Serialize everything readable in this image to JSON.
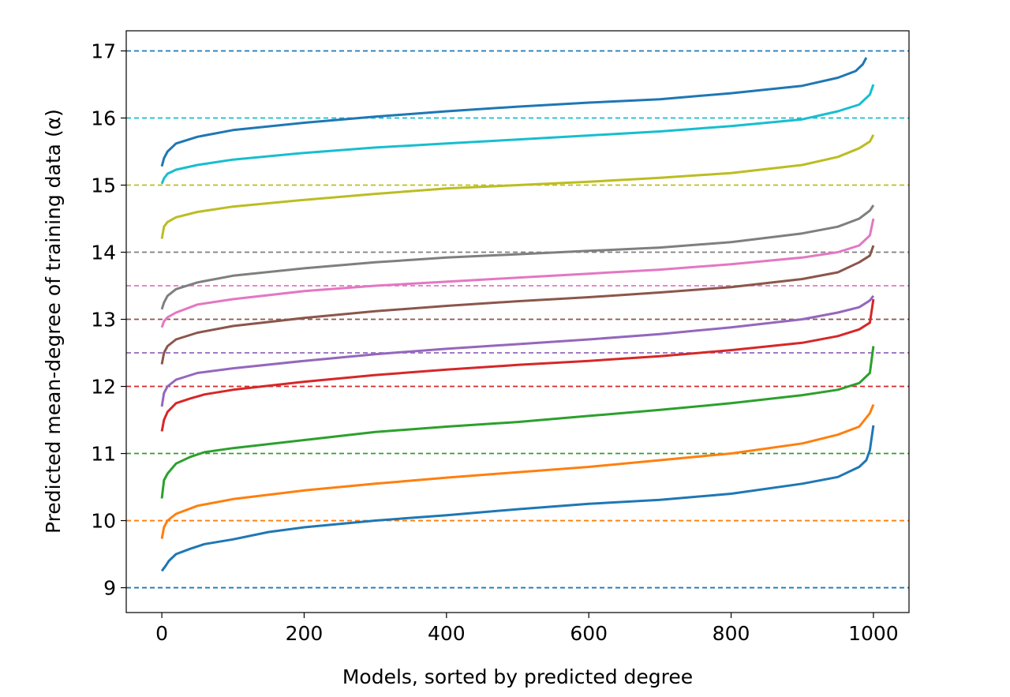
{
  "chart_data": {
    "type": "line",
    "title": "",
    "xlabel": "Models, sorted by predicted degree",
    "ylabel": "Predicted mean-degree of training data (α)",
    "xlim": [
      -50,
      1050
    ],
    "ylim": [
      8.63,
      17.3
    ],
    "xticks": [
      0,
      200,
      400,
      600,
      800,
      1000
    ],
    "yticks": [
      9,
      10,
      11,
      12,
      13,
      14,
      15,
      16,
      17
    ],
    "grid": false,
    "legend": "none",
    "reference_lines": [
      {
        "y": 9,
        "color": "#1f77b4"
      },
      {
        "y": 10,
        "color": "#ff7f0e"
      },
      {
        "y": 11,
        "color": "#2ca02c"
      },
      {
        "y": 12,
        "color": "#d62728"
      },
      {
        "y": 12.5,
        "color": "#9467bd"
      },
      {
        "y": 13,
        "color": "#8c564b"
      },
      {
        "y": 13.5,
        "color": "#e377c2"
      },
      {
        "y": 14,
        "color": "#7f7f7f"
      },
      {
        "y": 15,
        "color": "#bcbd22"
      },
      {
        "y": 16,
        "color": "#17becf"
      },
      {
        "y": 17,
        "color": "#1f77b4"
      }
    ],
    "series": [
      {
        "color": "#1f77b4",
        "points": [
          [
            0,
            9.25
          ],
          [
            5,
            9.32
          ],
          [
            10,
            9.4
          ],
          [
            20,
            9.5
          ],
          [
            40,
            9.58
          ],
          [
            60,
            9.65
          ],
          [
            100,
            9.72
          ],
          [
            150,
            9.83
          ],
          [
            200,
            9.9
          ],
          [
            300,
            10.0
          ],
          [
            400,
            10.08
          ],
          [
            500,
            10.17
          ],
          [
            600,
            10.25
          ],
          [
            700,
            10.31
          ],
          [
            800,
            10.4
          ],
          [
            900,
            10.55
          ],
          [
            950,
            10.65
          ],
          [
            980,
            10.8
          ],
          [
            990,
            10.9
          ],
          [
            995,
            11.05
          ],
          [
            1000,
            11.42
          ]
        ]
      },
      {
        "color": "#ff7f0e",
        "points": [
          [
            0,
            9.73
          ],
          [
            3,
            9.9
          ],
          [
            8,
            10.0
          ],
          [
            20,
            10.1
          ],
          [
            50,
            10.22
          ],
          [
            100,
            10.32
          ],
          [
            200,
            10.45
          ],
          [
            300,
            10.55
          ],
          [
            400,
            10.64
          ],
          [
            500,
            10.72
          ],
          [
            600,
            10.8
          ],
          [
            700,
            10.9
          ],
          [
            800,
            11.0
          ],
          [
            900,
            11.15
          ],
          [
            950,
            11.28
          ],
          [
            980,
            11.4
          ],
          [
            995,
            11.6
          ],
          [
            1000,
            11.73
          ]
        ]
      },
      {
        "color": "#2ca02c",
        "points": [
          [
            0,
            10.33
          ],
          [
            3,
            10.6
          ],
          [
            8,
            10.7
          ],
          [
            20,
            10.85
          ],
          [
            40,
            10.95
          ],
          [
            60,
            11.02
          ],
          [
            100,
            11.08
          ],
          [
            200,
            11.2
          ],
          [
            300,
            11.32
          ],
          [
            400,
            11.4
          ],
          [
            500,
            11.47
          ],
          [
            600,
            11.56
          ],
          [
            700,
            11.65
          ],
          [
            800,
            11.75
          ],
          [
            900,
            11.87
          ],
          [
            950,
            11.95
          ],
          [
            980,
            12.05
          ],
          [
            995,
            12.2
          ],
          [
            1000,
            12.6
          ]
        ]
      },
      {
        "color": "#d62728",
        "points": [
          [
            0,
            11.33
          ],
          [
            3,
            11.5
          ],
          [
            8,
            11.62
          ],
          [
            20,
            11.75
          ],
          [
            40,
            11.82
          ],
          [
            60,
            11.88
          ],
          [
            100,
            11.95
          ],
          [
            200,
            12.07
          ],
          [
            300,
            12.17
          ],
          [
            400,
            12.25
          ],
          [
            500,
            12.32
          ],
          [
            600,
            12.38
          ],
          [
            700,
            12.45
          ],
          [
            800,
            12.54
          ],
          [
            900,
            12.65
          ],
          [
            950,
            12.75
          ],
          [
            980,
            12.85
          ],
          [
            995,
            12.95
          ],
          [
            1000,
            13.3
          ]
        ]
      },
      {
        "color": "#9467bd",
        "points": [
          [
            0,
            11.7
          ],
          [
            3,
            11.9
          ],
          [
            8,
            12.0
          ],
          [
            20,
            12.1
          ],
          [
            50,
            12.2
          ],
          [
            100,
            12.27
          ],
          [
            200,
            12.38
          ],
          [
            300,
            12.48
          ],
          [
            400,
            12.56
          ],
          [
            500,
            12.63
          ],
          [
            600,
            12.7
          ],
          [
            700,
            12.78
          ],
          [
            800,
            12.88
          ],
          [
            900,
            13.0
          ],
          [
            950,
            13.1
          ],
          [
            980,
            13.18
          ],
          [
            995,
            13.28
          ],
          [
            1000,
            13.35
          ]
        ]
      },
      {
        "color": "#8c564b",
        "points": [
          [
            0,
            12.33
          ],
          [
            3,
            12.5
          ],
          [
            8,
            12.6
          ],
          [
            20,
            12.7
          ],
          [
            50,
            12.8
          ],
          [
            100,
            12.9
          ],
          [
            200,
            13.02
          ],
          [
            300,
            13.12
          ],
          [
            400,
            13.2
          ],
          [
            500,
            13.27
          ],
          [
            600,
            13.33
          ],
          [
            700,
            13.4
          ],
          [
            800,
            13.48
          ],
          [
            900,
            13.6
          ],
          [
            950,
            13.7
          ],
          [
            980,
            13.85
          ],
          [
            995,
            13.95
          ],
          [
            1000,
            14.1
          ]
        ]
      },
      {
        "color": "#e377c2",
        "points": [
          [
            0,
            12.88
          ],
          [
            3,
            12.97
          ],
          [
            8,
            13.03
          ],
          [
            20,
            13.1
          ],
          [
            50,
            13.22
          ],
          [
            100,
            13.3
          ],
          [
            200,
            13.42
          ],
          [
            300,
            13.5
          ],
          [
            400,
            13.56
          ],
          [
            500,
            13.62
          ],
          [
            600,
            13.68
          ],
          [
            700,
            13.74
          ],
          [
            800,
            13.82
          ],
          [
            900,
            13.92
          ],
          [
            950,
            14.0
          ],
          [
            980,
            14.1
          ],
          [
            995,
            14.25
          ],
          [
            1000,
            14.5
          ]
        ]
      },
      {
        "color": "#7f7f7f",
        "points": [
          [
            0,
            13.15
          ],
          [
            3,
            13.25
          ],
          [
            8,
            13.35
          ],
          [
            20,
            13.45
          ],
          [
            50,
            13.55
          ],
          [
            100,
            13.65
          ],
          [
            200,
            13.76
          ],
          [
            300,
            13.85
          ],
          [
            400,
            13.92
          ],
          [
            500,
            13.97
          ],
          [
            600,
            14.02
          ],
          [
            700,
            14.07
          ],
          [
            800,
            14.15
          ],
          [
            900,
            14.28
          ],
          [
            950,
            14.38
          ],
          [
            980,
            14.5
          ],
          [
            995,
            14.62
          ],
          [
            1000,
            14.7
          ]
        ]
      },
      {
        "color": "#bcbd22",
        "points": [
          [
            0,
            14.2
          ],
          [
            3,
            14.38
          ],
          [
            8,
            14.45
          ],
          [
            20,
            14.52
          ],
          [
            50,
            14.6
          ],
          [
            100,
            14.68
          ],
          [
            200,
            14.78
          ],
          [
            300,
            14.87
          ],
          [
            400,
            14.95
          ],
          [
            500,
            15.0
          ],
          [
            600,
            15.05
          ],
          [
            700,
            15.11
          ],
          [
            800,
            15.18
          ],
          [
            900,
            15.3
          ],
          [
            950,
            15.42
          ],
          [
            980,
            15.55
          ],
          [
            995,
            15.65
          ],
          [
            1000,
            15.75
          ]
        ]
      },
      {
        "color": "#17becf",
        "points": [
          [
            0,
            15.02
          ],
          [
            3,
            15.1
          ],
          [
            8,
            15.17
          ],
          [
            20,
            15.23
          ],
          [
            50,
            15.3
          ],
          [
            100,
            15.38
          ],
          [
            200,
            15.48
          ],
          [
            300,
            15.56
          ],
          [
            400,
            15.62
          ],
          [
            500,
            15.68
          ],
          [
            600,
            15.74
          ],
          [
            700,
            15.8
          ],
          [
            800,
            15.88
          ],
          [
            900,
            15.98
          ],
          [
            950,
            16.1
          ],
          [
            980,
            16.2
          ],
          [
            995,
            16.35
          ],
          [
            1000,
            16.5
          ]
        ]
      },
      {
        "color": "#1f77b4",
        "points": [
          [
            0,
            15.28
          ],
          [
            3,
            15.4
          ],
          [
            8,
            15.5
          ],
          [
            20,
            15.62
          ],
          [
            50,
            15.72
          ],
          [
            100,
            15.82
          ],
          [
            200,
            15.93
          ],
          [
            300,
            16.02
          ],
          [
            400,
            16.1
          ],
          [
            500,
            16.17
          ],
          [
            600,
            16.23
          ],
          [
            700,
            16.28
          ],
          [
            800,
            16.37
          ],
          [
            900,
            16.48
          ],
          [
            950,
            16.6
          ],
          [
            975,
            16.7
          ],
          [
            985,
            16.8
          ],
          [
            990,
            16.9
          ]
        ]
      }
    ]
  }
}
